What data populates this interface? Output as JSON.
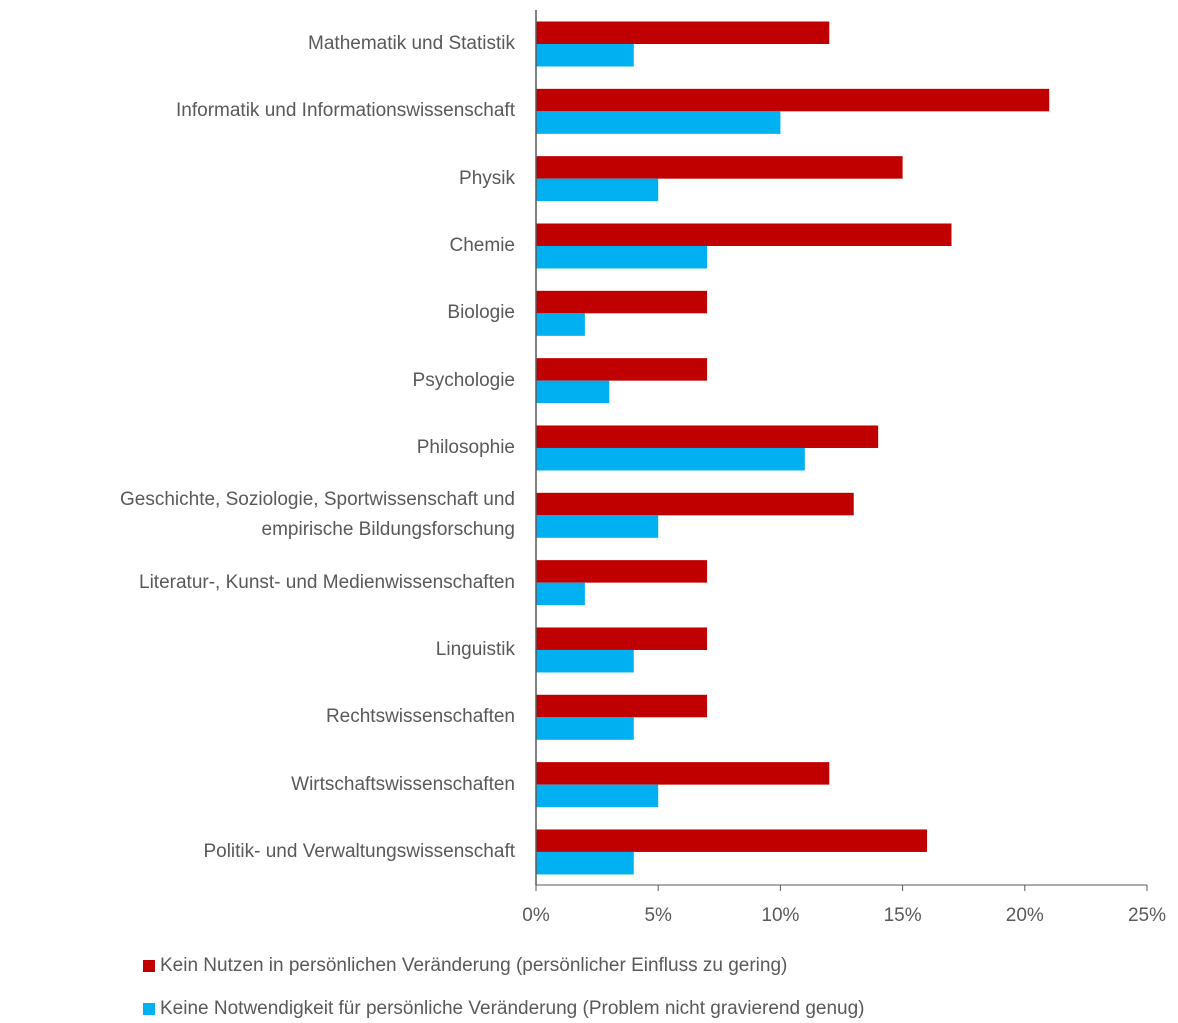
{
  "chart_data": {
    "type": "hbar",
    "categories": [
      "Mathematik und Statistik",
      "Informatik und Informationswissenschaft",
      "Physik",
      "Chemie",
      "Biologie",
      "Psychologie",
      "Philosophie",
      "Geschichte, Soziologie, Sportwissenschaft und\nempirische Bildungsforschung",
      "Literatur-, Kunst- und Medienwissenschaften",
      "Linguistik",
      "Rechtswissenschaften",
      "Wirtschaftswissenschaften",
      "Politik- und Verwaltungswissenschaft"
    ],
    "series": [
      {
        "name": "Kein Nutzen in persönlichen Veränderung (persönlicher Einfluss zu gering)",
        "color": "#c00000",
        "values": [
          12,
          21,
          15,
          17,
          7,
          7,
          14,
          13,
          7,
          7,
          7,
          12,
          16
        ]
      },
      {
        "name": "Keine Notwendigkeit für  persönliche Veränderung (Problem nicht gravierend genug)",
        "color": "#00b0f0",
        "values": [
          4,
          10,
          5,
          7,
          2,
          3,
          11,
          5,
          2,
          4,
          4,
          5,
          4
        ]
      }
    ],
    "xlim": [
      0,
      25
    ],
    "xticks": [
      {
        "value": 0,
        "label": "0%"
      },
      {
        "value": 5,
        "label": "5%"
      },
      {
        "value": 10,
        "label": "10%"
      },
      {
        "value": 15,
        "label": "15%"
      },
      {
        "value": 20,
        "label": "20%"
      },
      {
        "value": 25,
        "label": "25%"
      }
    ],
    "grid": false,
    "legend": "bottom"
  }
}
